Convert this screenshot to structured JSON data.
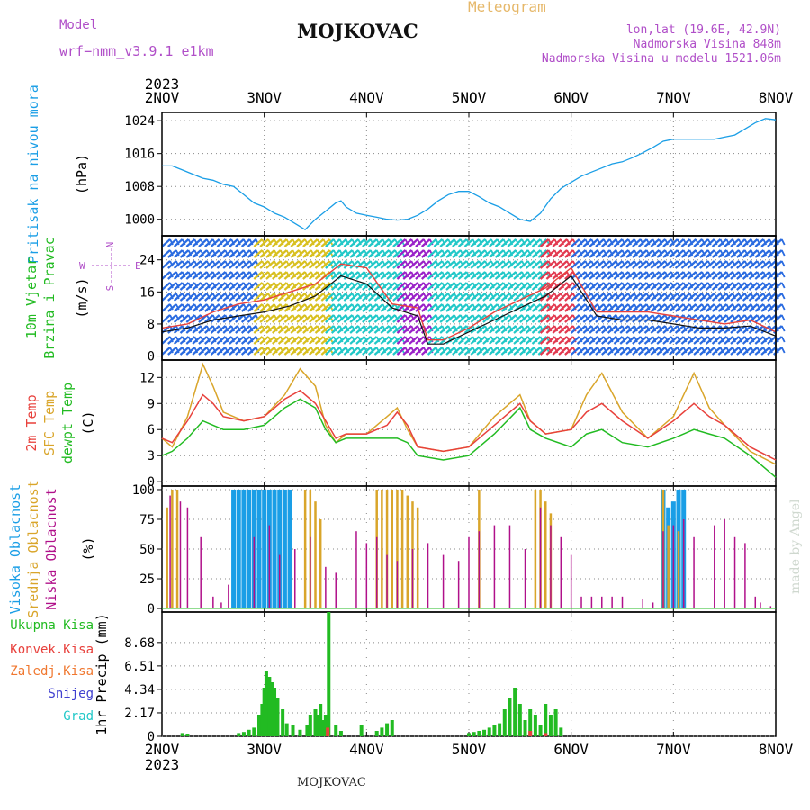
{
  "header": {
    "model_label": "Model",
    "model_name": "wrf−nmm_v3.9.1  e1km",
    "station": "MOJKOVAC",
    "meteogram": "Meteogram",
    "lonlat": "lon,lat (19.6E, 42.9N)",
    "elevation": "Nadmorska Visina 848m",
    "model_elevation": "Nadmorska Visina u modelu 1521.06m",
    "footer": "MOJKOVAC",
    "made_by": "made by Angel"
  },
  "colors": {
    "pressure": "#1a9ee6",
    "temp2m": "#e8413c",
    "sfc_temp": "#d9a52a",
    "dewpoint": "#22bb22",
    "high_cloud": "#1a9ee6",
    "mid_cloud": "#d9a52a",
    "low_cloud": "#b0108a",
    "total_precip": "#22bb22",
    "conv_precip": "#e8413c",
    "purple": "#b04ec8"
  },
  "chart_data": [
    {
      "type": "line",
      "name": "pressure",
      "ylabel": "Pritisak na nivou mora",
      "unit": "(hPa)",
      "ylim": [
        996,
        1026
      ],
      "yticks": [
        1000,
        1008,
        1016,
        1024
      ],
      "xlabels_top": [
        "2NOV",
        "3NOV",
        "4NOV",
        "5NOV",
        "6NOV",
        "7NOV",
        "8NOV"
      ],
      "year": "2023",
      "x": [
        0,
        0.1,
        0.2,
        0.3,
        0.4,
        0.5,
        0.6,
        0.7,
        0.8,
        0.9,
        1.0,
        1.1,
        1.2,
        1.3,
        1.4,
        1.5,
        1.6,
        1.7,
        1.75,
        1.8,
        1.9,
        2.0,
        2.1,
        2.2,
        2.3,
        2.4,
        2.5,
        2.6,
        2.7,
        2.8,
        2.9,
        3.0,
        3.1,
        3.2,
        3.3,
        3.4,
        3.5,
        3.6,
        3.7,
        3.8,
        3.9,
        4.0,
        4.1,
        4.2,
        4.3,
        4.4,
        4.5,
        4.6,
        4.7,
        4.8,
        4.9,
        5.0,
        5.1,
        5.2,
        5.3,
        5.4,
        5.5,
        5.6,
        5.7,
        5.8,
        5.9,
        6.0
      ],
      "series": [
        {
          "values": [
            1013,
            1013,
            1012,
            1011,
            1010,
            1009.5,
            1008.5,
            1008,
            1006,
            1004,
            1003,
            1001.5,
            1000.5,
            999,
            997.5,
            1000,
            1002,
            1004,
            1004.5,
            1003,
            1001.5,
            1001,
            1000.5,
            1000,
            999.8,
            1000,
            1001,
            1002.5,
            1004.5,
            1006,
            1006.8,
            1006.8,
            1005.5,
            1004,
            1003,
            1001.5,
            1000,
            999.5,
            1001.5,
            1005,
            1007.5,
            1009,
            1010.5,
            1011.5,
            1012.5,
            1013.5,
            1014,
            1015,
            1016.2,
            1017.5,
            1019,
            1019.5,
            1019.5,
            1019.5,
            1019.5,
            1019.5,
            1020,
            1020.5,
            1022,
            1023.5,
            1024.5,
            1024.2
          ]
        }
      ]
    },
    {
      "type": "line",
      "name": "wind",
      "ylabel": "10m Vjetar",
      "ylabel2": "Brzina i Pravac",
      "unit": "(m/s)",
      "ylim": [
        -1,
        30
      ],
      "yticks": [
        0,
        8,
        16,
        24
      ],
      "x": [
        0,
        0.25,
        0.5,
        0.75,
        1.0,
        1.25,
        1.5,
        1.75,
        2.0,
        2.25,
        2.5,
        2.6,
        2.75,
        3.0,
        3.25,
        3.5,
        3.75,
        4.0,
        4.25,
        4.5,
        4.75,
        5.0,
        5.25,
        5.5,
        5.75,
        6.0
      ],
      "series": [
        {
          "values": [
            6,
            7,
            9,
            10,
            11,
            12.5,
            15,
            20,
            18,
            12,
            10,
            3,
            3,
            6,
            9,
            12,
            15,
            20,
            10,
            9,
            9,
            8,
            7,
            7,
            7.5,
            5
          ]
        },
        {
          "values": [
            7,
            8,
            11,
            13,
            14,
            16,
            18,
            23,
            22,
            13,
            12,
            4,
            4,
            7,
            11,
            14,
            17,
            22,
            11,
            11,
            11,
            10,
            9,
            8,
            9,
            6
          ]
        }
      ],
      "wind_dir_bands": [
        {
          "from": 0,
          "to": 0.9,
          "color": "#2a6be0"
        },
        {
          "from": 0.9,
          "to": 1.6,
          "color": "#d8c020"
        },
        {
          "from": 1.6,
          "to": 2.3,
          "color": "#22c8c8"
        },
        {
          "from": 2.3,
          "to": 2.6,
          "color": "#9a22c8"
        },
        {
          "from": 2.6,
          "to": 3.7,
          "color": "#22c8c8"
        },
        {
          "from": 3.7,
          "to": 4.0,
          "color": "#e23a50"
        },
        {
          "from": 4.0,
          "to": 6.0,
          "color": "#2a6be0"
        }
      ],
      "compass": {
        "w": "W",
        "e": "E",
        "n": "N",
        "s": "S"
      }
    },
    {
      "type": "line",
      "name": "temperature",
      "ylabels": [
        "2m Temp",
        "SFC Temp",
        "dewpt Temp"
      ],
      "unit": "(C)",
      "ylim": [
        -0.5,
        14
      ],
      "yticks": [
        0,
        3,
        6,
        9,
        12
      ],
      "x": [
        0,
        0.1,
        0.25,
        0.4,
        0.5,
        0.6,
        0.8,
        1.0,
        1.2,
        1.35,
        1.5,
        1.6,
        1.7,
        1.8,
        2.0,
        2.2,
        2.3,
        2.4,
        2.5,
        2.75,
        3.0,
        3.25,
        3.5,
        3.6,
        3.75,
        4.0,
        4.15,
        4.3,
        4.5,
        4.75,
        5.0,
        5.2,
        5.35,
        5.5,
        5.75,
        6.0
      ],
      "series": [
        {
          "name": "2m Temp",
          "values": [
            5,
            4.5,
            7,
            10,
            9,
            7.5,
            7,
            7.5,
            9.5,
            10.5,
            9,
            7,
            5,
            5.5,
            5.5,
            6.5,
            8,
            6.5,
            4,
            3.5,
            4,
            6.5,
            9,
            7,
            5.5,
            6,
            8,
            9,
            7,
            5,
            7,
            9,
            7.5,
            6.5,
            4,
            2.5
          ]
        },
        {
          "name": "SFC Temp",
          "values": [
            5,
            4,
            7.5,
            13.5,
            11,
            8,
            7,
            7.5,
            10,
            13,
            11,
            6.5,
            4.5,
            5.5,
            5.5,
            7.5,
            8.5,
            6,
            4,
            3.5,
            4,
            7.5,
            10,
            7,
            5.5,
            6,
            10,
            12.5,
            8,
            5,
            7.5,
            12.5,
            8.5,
            6.5,
            3.5,
            2
          ]
        },
        {
          "name": "dewpt Temp",
          "values": [
            3,
            3.5,
            5,
            7,
            6.5,
            6,
            6,
            6.5,
            8.5,
            9.5,
            8.5,
            6,
            4.5,
            5,
            5,
            5,
            5,
            4.5,
            3,
            2.5,
            3,
            5.5,
            8.5,
            6,
            5,
            4,
            5.5,
            6,
            4.5,
            4,
            5,
            6,
            5.5,
            5,
            3,
            0.5
          ]
        }
      ]
    },
    {
      "type": "bar",
      "name": "clouds",
      "ylabels": [
        "Visoka Oblacnost",
        "Srednja Oblacnost",
        "Niska Oblacnost"
      ],
      "unit": "(%)",
      "ylim": [
        -3,
        103
      ],
      "yticks": [
        0,
        25,
        50,
        75,
        100
      ],
      "series": [
        {
          "name": "Visoka Oblacnost",
          "x": [
            0.7,
            0.75,
            0.8,
            0.85,
            0.9,
            0.95,
            1.0,
            1.05,
            1.1,
            1.15,
            1.2,
            1.25,
            4.9,
            4.95,
            5.0,
            5.05,
            5.1
          ],
          "values": [
            100,
            100,
            100,
            100,
            100,
            100,
            100,
            100,
            100,
            100,
            100,
            100,
            100,
            85,
            90,
            100,
            100
          ]
        },
        {
          "name": "Srednja Oblacnost",
          "x": [
            0.05,
            0.1,
            0.15,
            1.4,
            1.45,
            1.5,
            1.55,
            2.1,
            2.15,
            2.2,
            2.25,
            2.3,
            2.35,
            2.4,
            2.45,
            2.5,
            3.1,
            3.65,
            3.7,
            3.75,
            3.8,
            4.9,
            4.95,
            5.05
          ],
          "values": [
            85,
            100,
            100,
            100,
            100,
            90,
            75,
            100,
            100,
            100,
            100,
            100,
            100,
            95,
            90,
            85,
            100,
            100,
            100,
            90,
            80,
            100,
            70,
            65
          ]
        },
        {
          "name": "Niska Oblacnost",
          "x": [
            0.08,
            0.18,
            0.25,
            0.38,
            0.5,
            0.58,
            0.65,
            0.9,
            1.05,
            1.15,
            1.3,
            1.45,
            1.6,
            1.7,
            1.9,
            2.0,
            2.1,
            2.2,
            2.3,
            2.45,
            2.6,
            2.75,
            2.9,
            3.0,
            3.1,
            3.25,
            3.4,
            3.55,
            3.7,
            3.8,
            3.9,
            4.0,
            4.1,
            4.2,
            4.3,
            4.4,
            4.5,
            4.7,
            4.8,
            4.9,
            5.0,
            5.1,
            5.2,
            5.4,
            5.5,
            5.6,
            5.7,
            5.8,
            5.85,
            5.95
          ],
          "values": [
            95,
            90,
            85,
            60,
            10,
            5,
            20,
            60,
            70,
            45,
            50,
            60,
            35,
            30,
            65,
            55,
            60,
            45,
            40,
            50,
            55,
            45,
            40,
            60,
            65,
            70,
            70,
            50,
            85,
            70,
            60,
            45,
            10,
            10,
            10,
            10,
            10,
            8,
            5,
            65,
            70,
            75,
            60,
            70,
            75,
            60,
            55,
            10,
            5,
            2
          ]
        }
      ]
    },
    {
      "type": "bar",
      "name": "precipitation",
      "ylabel": "1hr Precip (mm)",
      "legend": [
        "Ukupna Kisa",
        "Konvek.Kisa",
        "Zaledj.Kisa",
        "Snijeg",
        "Grad"
      ],
      "ylim": [
        0,
        11.5
      ],
      "yticks": [
        0,
        2.17,
        4.34,
        6.51,
        8.68
      ],
      "xlabels_bottom": [
        "2NOV",
        "3NOV",
        "4NOV",
        "5NOV",
        "6NOV",
        "7NOV",
        "8NOV"
      ],
      "year": "2023",
      "series": [
        {
          "name": "Ukupna Kisa",
          "x": [
            0.2,
            0.25,
            0.75,
            0.8,
            0.85,
            0.9,
            0.95,
            0.98,
            1.0,
            1.02,
            1.05,
            1.08,
            1.1,
            1.13,
            1.18,
            1.22,
            1.28,
            1.35,
            1.42,
            1.45,
            1.5,
            1.53,
            1.55,
            1.58,
            1.6,
            1.63,
            1.7,
            1.75,
            1.95,
            2.1,
            2.15,
            2.2,
            2.25,
            3.0,
            3.05,
            3.1,
            3.15,
            3.2,
            3.25,
            3.3,
            3.35,
            3.4,
            3.45,
            3.5,
            3.55,
            3.6,
            3.65,
            3.7,
            3.75,
            3.8,
            3.85,
            3.9
          ],
          "values": [
            0.3,
            0.2,
            0.3,
            0.4,
            0.6,
            0.8,
            2.0,
            3.0,
            4.5,
            6.0,
            5.5,
            5.0,
            4.5,
            3.5,
            2.5,
            1.2,
            1.0,
            0.6,
            1.0,
            2.0,
            2.5,
            2.0,
            3.0,
            1.5,
            2.0,
            11.5,
            1.0,
            0.5,
            1.0,
            0.5,
            0.8,
            1.2,
            1.5,
            0.3,
            0.4,
            0.5,
            0.6,
            0.8,
            1.0,
            1.2,
            2.5,
            3.5,
            4.5,
            3.0,
            1.5,
            2.5,
            2.0,
            1.0,
            3.0,
            2.0,
            2.5,
            0.8
          ]
        },
        {
          "name": "Konvek.Kisa",
          "x": [
            1.62,
            3.6,
            3.75
          ],
          "values": [
            0.8,
            0.5,
            0.3
          ]
        }
      ]
    }
  ]
}
